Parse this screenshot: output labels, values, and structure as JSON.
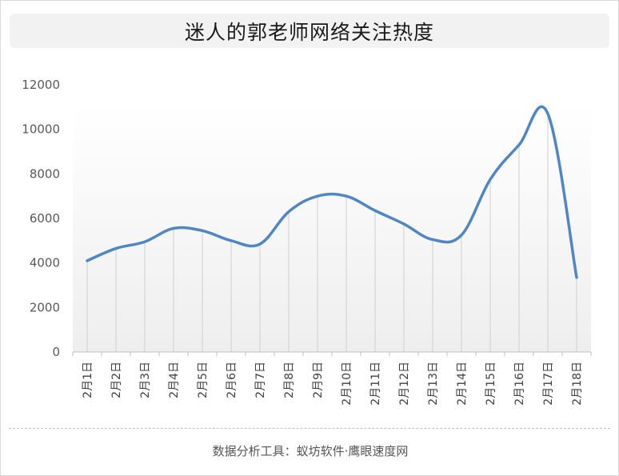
{
  "header": {
    "title": "迷人的郭老师网络关注热度"
  },
  "footer": {
    "credit": "数据分析工具：蚁坊软件·鹰眼速度网"
  },
  "chart_data": {
    "type": "line",
    "title": "迷人的郭老师网络关注热度",
    "xlabel": "",
    "ylabel": "",
    "categories": [
      "2月1日",
      "2月2日",
      "2月3日",
      "2月4日",
      "2月5日",
      "2月6日",
      "2月7日",
      "2月8日",
      "2月9日",
      "2月10日",
      "2月11日",
      "2月12日",
      "2月13日",
      "2月14日",
      "2月15日",
      "2月16日",
      "2月17日",
      "2月18日"
    ],
    "series": [
      {
        "name": "",
        "values": [
          4100,
          4650,
          4950,
          5550,
          5450,
          5000,
          4850,
          6300,
          7000,
          7000,
          6350,
          5750,
          5050,
          5250,
          7750,
          9300,
          10700,
          3350
        ]
      }
    ],
    "ylim": [
      0,
      12000
    ],
    "yticks": [
      0,
      2000,
      4000,
      6000,
      8000,
      10000,
      12000
    ],
    "grid": false,
    "legend": "none",
    "line_color": "#4f86c6",
    "drop_line_color": "#cfcfcf",
    "area_fill_top": "#ffffff",
    "area_fill_bottom": "#eeeeee"
  }
}
